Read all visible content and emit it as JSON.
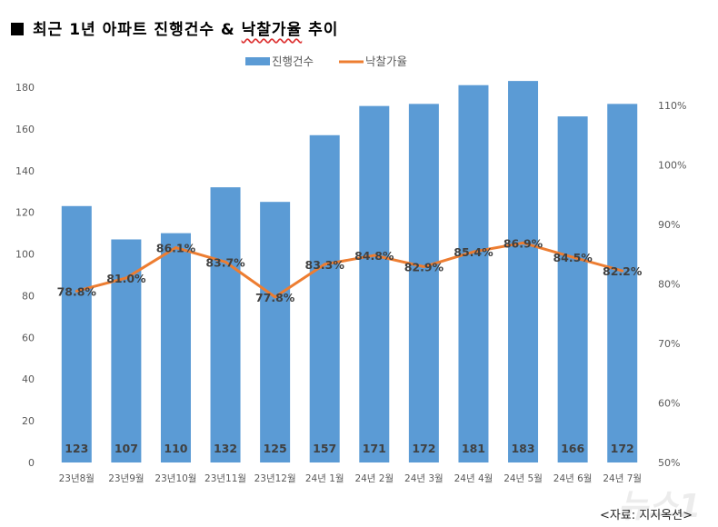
{
  "title": {
    "prefix_icon": "black-square-icon",
    "part1": "최근 1년 아파트 진행건수 & ",
    "part2": "낙찰가율",
    "part3": " 추이"
  },
  "source": "<자료: 지지옥션>",
  "watermark": "뉴스1",
  "chart_data": {
    "type": "bar+line",
    "categories": [
      "23년8월",
      "23년9월",
      "23년10월",
      "23년11월",
      "23년12월",
      "24년 1월",
      "24년 2월",
      "24년 3월",
      "24년 4월",
      "24년 5월",
      "24년 6월",
      "24년 7월"
    ],
    "series": [
      {
        "name": "진행건수",
        "type": "bar",
        "axis": "left",
        "color": "#5b9bd5",
        "values": [
          123,
          107,
          110,
          132,
          125,
          157,
          171,
          172,
          181,
          183,
          166,
          172
        ],
        "labels": [
          "123",
          "107",
          "110",
          "132",
          "125",
          "157",
          "171",
          "172",
          "181",
          "183",
          "166",
          "172"
        ]
      },
      {
        "name": "낙찰가율",
        "type": "line",
        "axis": "right",
        "color": "#ed7d31",
        "values": [
          78.8,
          81.0,
          86.1,
          83.7,
          77.8,
          83.3,
          84.8,
          82.9,
          85.4,
          86.9,
          84.5,
          82.2
        ],
        "labels": [
          "78.8%",
          "81.0%",
          "86.1%",
          "83.7%",
          "77.8%",
          "83.3%",
          "84.8%",
          "82.9%",
          "85.4%",
          "86.9%",
          "84.5%",
          "82.2%"
        ]
      }
    ],
    "y_left": {
      "range": [
        0,
        180
      ],
      "ticks": [
        "0",
        "20",
        "40",
        "60",
        "80",
        "100",
        "120",
        "140",
        "160",
        "180"
      ]
    },
    "y_right": {
      "range": [
        50,
        110
      ],
      "ticks": [
        "50%",
        "60%",
        "70%",
        "80%",
        "90%",
        "100%",
        "110%"
      ]
    },
    "grid": false,
    "legend": "top"
  }
}
